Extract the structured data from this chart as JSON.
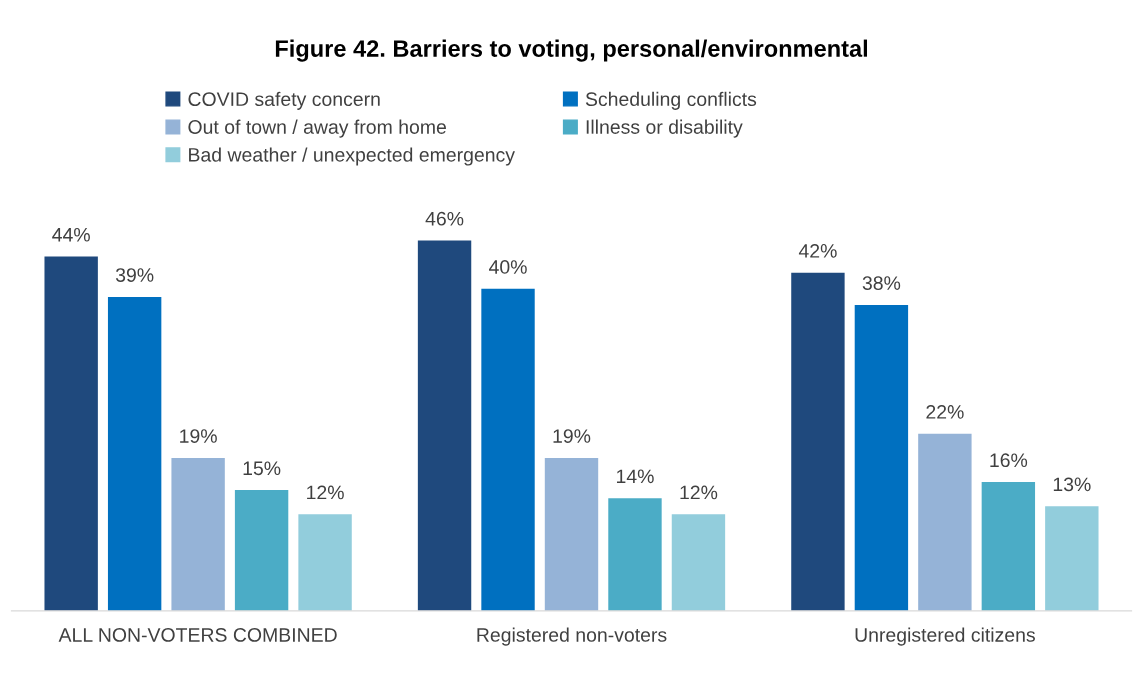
{
  "chart_data": {
    "type": "bar",
    "title": "Figure 42. Barriers to voting, personal/environmental",
    "categories": [
      "ALL NON-VOTERS COMBINED",
      "Registered non-voters",
      "Unregistered citizens"
    ],
    "series": [
      {
        "name": "COVID safety concern",
        "color": "#1f497d",
        "values": [
          44,
          46,
          42
        ],
        "value_labels": [
          "44%",
          "46%",
          "42%"
        ]
      },
      {
        "name": "Scheduling conflicts",
        "color": "#0070c0",
        "values": [
          39,
          40,
          38
        ],
        "value_labels": [
          "39%",
          "40%",
          "38%"
        ]
      },
      {
        "name": "Out of town / away from home",
        "color": "#95b3d7",
        "values": [
          19,
          19,
          22
        ],
        "value_labels": [
          "19%",
          "19%",
          "22%"
        ]
      },
      {
        "name": "Illness or disability",
        "color": "#4bacc6",
        "values": [
          15,
          14,
          16
        ],
        "value_labels": [
          "15%",
          "14%",
          "16%"
        ]
      },
      {
        "name": "Bad weather / unexpected emergency",
        "color": "#92cddc",
        "values": [
          12,
          12,
          13
        ],
        "value_labels": [
          "12%",
          "12%",
          "13%"
        ]
      }
    ],
    "legend": "top"
  }
}
